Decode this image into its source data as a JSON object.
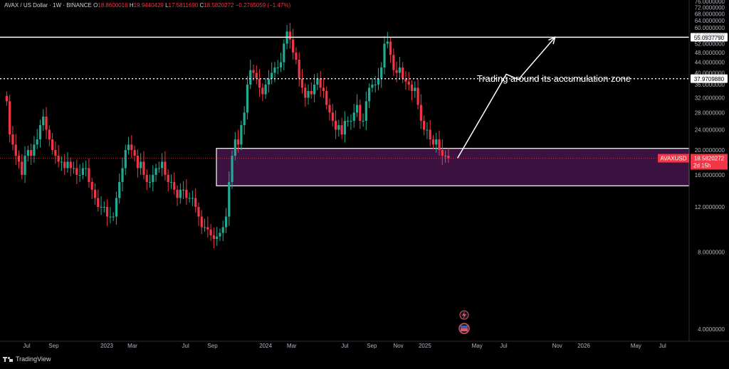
{
  "header": {
    "symbol": "AVAX / US Dollar · 1W · BINANCE",
    "o_label": "O",
    "o_value": "18.8600016",
    "h_label": "H",
    "h_value": "19.9440429",
    "l_label": "L",
    "l_value": "17.5811690",
    "c_label": "C",
    "c_value": "18.5820272",
    "change": "−0.2765059 (−1.47%)"
  },
  "footer": {
    "brand": "TradingView"
  },
  "colors": {
    "up": "#22ab94",
    "down": "#f23645",
    "zone_fill": "#3c1240",
    "line": "#ffffff"
  },
  "chart_data": {
    "type": "candlestick",
    "scale": "log",
    "ylim": [
      4,
      76
    ],
    "y_ticks": [
      "4.0000000",
      "8.0000000",
      "12.0000000",
      "16.0000000",
      "20.0000000",
      "24.0000000",
      "28.0000000",
      "32.0000000",
      "36.0000000",
      "40.0000000",
      "44.0000000",
      "48.0000000",
      "52.0000000",
      "56.0000000",
      "60.0000000",
      "64.0000000",
      "68.0000000",
      "72.0000000",
      "76.0000000"
    ],
    "x_labels": [
      {
        "label": "Jul",
        "date": "2022-07-01"
      },
      {
        "label": "Sep",
        "date": "2022-09-01"
      },
      {
        "label": "2023",
        "date": "2023-01-01"
      },
      {
        "label": "Mar",
        "date": "2023-03-01"
      },
      {
        "label": "Jul",
        "date": "2023-07-01"
      },
      {
        "label": "Sep",
        "date": "2023-09-01"
      },
      {
        "label": "2024",
        "date": "2024-01-01"
      },
      {
        "label": "Mar",
        "date": "2024-03-01"
      },
      {
        "label": "Jul",
        "date": "2024-07-01"
      },
      {
        "label": "Sep",
        "date": "2024-09-01"
      },
      {
        "label": "Nov",
        "date": "2024-11-01"
      },
      {
        "label": "2025",
        "date": "2025-01-01"
      },
      {
        "label": "May",
        "date": "2025-05-01"
      },
      {
        "label": "Jul",
        "date": "2025-07-01"
      },
      {
        "label": "Nov",
        "date": "2025-11-01"
      },
      {
        "label": "2026",
        "date": "2026-01-01"
      },
      {
        "label": "May",
        "date": "2026-05-01"
      },
      {
        "label": "Jul",
        "date": "2026-07-01"
      }
    ],
    "series": [
      {
        "name": "AVAXUSD",
        "weekly_closes_from": "2022-05-16",
        "closes": [
          31,
          23,
          21,
          19,
          18,
          16,
          19,
          20,
          19,
          21,
          22,
          25,
          27,
          24,
          22,
          20,
          19,
          18,
          18,
          17,
          18,
          17,
          17,
          16,
          16,
          17,
          17,
          15,
          14,
          13,
          12,
          12,
          12,
          11,
          11,
          11,
          13,
          15,
          17,
          20,
          21,
          20,
          19,
          17,
          18,
          16,
          15,
          15,
          16,
          17,
          17,
          18,
          16,
          15,
          15,
          14,
          13,
          14,
          14,
          13,
          13,
          13,
          12,
          11,
          10,
          10,
          9.8,
          9.3,
          9.0,
          9.2,
          9.5,
          10,
          11,
          15,
          19,
          22,
          21,
          25,
          28,
          36,
          41,
          40,
          38,
          35,
          33,
          36,
          38,
          40,
          42,
          42,
          44,
          52,
          58,
          54,
          48,
          45,
          38,
          35,
          32,
          34,
          33,
          36,
          38,
          35,
          34,
          30,
          28,
          26,
          24,
          25,
          23,
          26,
          26,
          26,
          28,
          30,
          26,
          26,
          31,
          35,
          36,
          36,
          38,
          42,
          52,
          53,
          47,
          41,
          40,
          42,
          38,
          37,
          36,
          34,
          35,
          30,
          26,
          24,
          24,
          22,
          21,
          22,
          20,
          19,
          19,
          18.5820272
        ]
      }
    ],
    "horizontal_levels": [
      {
        "label": "55.0937790",
        "value": 55.093779,
        "style": "solid"
      },
      {
        "label": "37.9709880",
        "value": 37.970988,
        "style": "dotted"
      }
    ],
    "zone": {
      "low": 14.5,
      "high": 20.3
    },
    "projection": {
      "points": [
        {
          "date": "2025-03-17",
          "value": 18.6
        },
        {
          "date": "2025-07-07",
          "value": 39.5
        },
        {
          "date": "2025-08-04",
          "value": 37.7
        },
        {
          "date": "2025-10-27",
          "value": 55.1
        }
      ]
    },
    "last_price": {
      "symbol": "AVAXUSD",
      "value": "18.5820272",
      "countdown": "2d 15h"
    },
    "annotation": "Trading around its accumulation zone"
  }
}
